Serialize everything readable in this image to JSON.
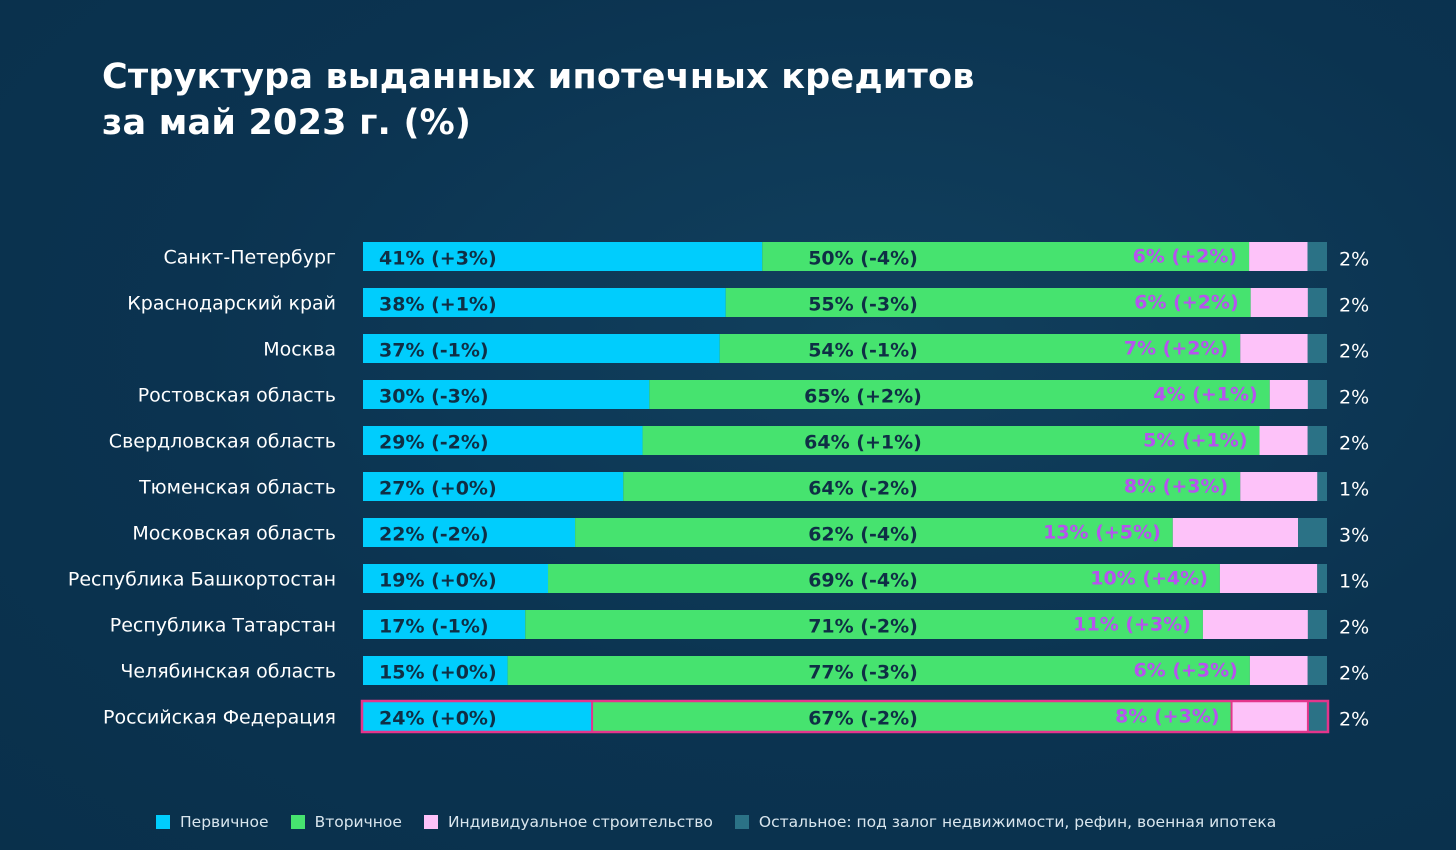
{
  "title_line1": "Структура выданных ипотечных кредитов",
  "title_line2": "за май 2023 г. (%)",
  "colors": {
    "primary": "#00cdfd",
    "secondary": "#46e36f",
    "individual": "#fdc2f9",
    "other": "#2b7286",
    "dark_label": "#0f2f45",
    "pink_label": "#b653ee",
    "highlight_border": "#e4358c"
  },
  "legend": [
    {
      "key": "primary",
      "label": "Первичное"
    },
    {
      "key": "secondary",
      "label": "Вторичное"
    },
    {
      "key": "individual",
      "label": "Индивидуальное строительство"
    },
    {
      "key": "other",
      "label": "Остальное: под залог недвижимости, рефин, военная ипотека"
    }
  ],
  "chart_data": {
    "type": "bar",
    "orientation": "horizontal",
    "stacked": true,
    "title": "Структура выданных ипотечных кредитов за май 2023 г. (%)",
    "categories": [
      "Санкт-Петербург",
      "Краснодарский край",
      "Москва",
      "Ростовская область",
      "Свердловская область",
      "Тюменская область",
      "Московская область",
      "Республика Башкортостан",
      "Республика Татарстан",
      "Челябинская область",
      "Российская Федерация"
    ],
    "highlighted_category": "Российская Федерация",
    "series": [
      {
        "name": "Первичное",
        "values": [
          41,
          38,
          37,
          30,
          29,
          27,
          22,
          19,
          17,
          15,
          24
        ],
        "labels": [
          "41% (+3%)",
          "38% (+1%)",
          "37% (-1%)",
          "30% (-3%)",
          "29% (-2%)",
          "27% (+0%)",
          "22% (-2%)",
          "19% (+0%)",
          "17% (-1%)",
          "15% (+0%)",
          "24% (+0%)"
        ]
      },
      {
        "name": "Вторичное",
        "values": [
          50,
          55,
          54,
          65,
          64,
          64,
          62,
          69,
          71,
          77,
          67
        ],
        "labels": [
          "50% (-4%)",
          "55% (-3%)",
          "54% (-1%)",
          "65% (+2%)",
          "64% (+1%)",
          "64% (-2%)",
          "62% (-4%)",
          "69% (-4%)",
          "71% (-2%)",
          "77% (-3%)",
          "67% (-2%)"
        ]
      },
      {
        "name": "Индивидуальное строительство",
        "values": [
          6,
          6,
          7,
          4,
          5,
          8,
          13,
          10,
          11,
          6,
          8
        ],
        "labels": [
          "6% (+2%)",
          "6% (+2%)",
          "7% (+2%)",
          "4% (+1%)",
          "5% (+1%)",
          "8% (+3%)",
          "13% (+5%)",
          "10% (+4%)",
          "11% (+3%)",
          "6% (+3%)",
          "8% (+3%)"
        ]
      },
      {
        "name": "Остальное: под залог недвижимости, рефин, военная ипотека",
        "values": [
          2,
          2,
          2,
          2,
          2,
          1,
          3,
          1,
          2,
          2,
          2
        ],
        "labels": [
          "2%",
          "2%",
          "2%",
          "2%",
          "2%",
          "1%",
          "3%",
          "1%",
          "2%",
          "2%",
          "2%"
        ]
      }
    ]
  }
}
